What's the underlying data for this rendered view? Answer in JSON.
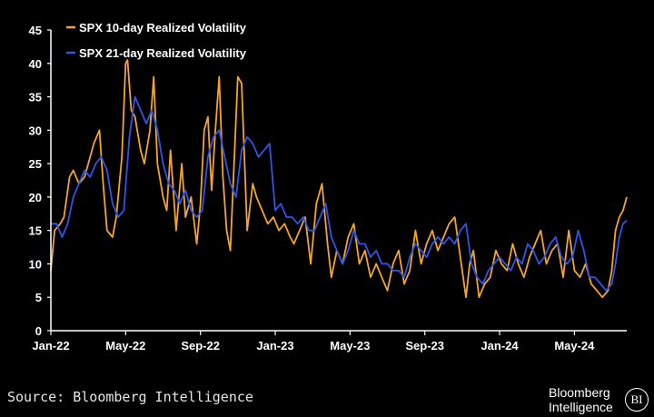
{
  "chart_data": {
    "type": "line",
    "title": "",
    "xlabel": "",
    "ylabel": "",
    "ylim": [
      0,
      45
    ],
    "yticks": [
      0,
      5,
      10,
      15,
      20,
      25,
      30,
      35,
      40,
      45
    ],
    "x_range": [
      0,
      30.8
    ],
    "x_unit": "months since Jan-22",
    "xtick_labels": [
      {
        "x": 0,
        "label": "Jan-22"
      },
      {
        "x": 4,
        "label": "May-22"
      },
      {
        "x": 8,
        "label": "Sep-22"
      },
      {
        "x": 12,
        "label": "Jan-23"
      },
      {
        "x": 16,
        "label": "May-23"
      },
      {
        "x": 20,
        "label": "Sep-23"
      },
      {
        "x": 24,
        "label": "Jan-24"
      },
      {
        "x": 28,
        "label": "May-24"
      }
    ],
    "series": [
      {
        "name": "SPX 10-day Realized Volatility",
        "color": "#f5a623",
        "x": [
          0,
          0.2,
          0.5,
          0.7,
          1.0,
          1.2,
          1.5,
          1.8,
          2.0,
          2.3,
          2.6,
          2.8,
          3.0,
          3.3,
          3.5,
          3.8,
          4.0,
          4.1,
          4.3,
          4.5,
          4.8,
          5.0,
          5.3,
          5.5,
          5.7,
          6.0,
          6.2,
          6.4,
          6.7,
          7.0,
          7.2,
          7.5,
          7.8,
          8.0,
          8.2,
          8.4,
          8.6,
          8.8,
          9.0,
          9.2,
          9.4,
          9.6,
          9.8,
          10.0,
          10.2,
          10.5,
          10.8,
          11.0,
          11.3,
          11.6,
          11.9,
          12.2,
          12.5,
          12.8,
          13.0,
          13.3,
          13.6,
          13.9,
          14.2,
          14.5,
          14.8,
          15.0,
          15.3,
          15.6,
          15.9,
          16.2,
          16.5,
          16.8,
          17.1,
          17.4,
          17.7,
          18.0,
          18.3,
          18.6,
          18.9,
          19.2,
          19.5,
          19.8,
          20.1,
          20.4,
          20.7,
          21.0,
          21.3,
          21.6,
          21.9,
          22.2,
          22.4,
          22.6,
          22.9,
          23.2,
          23.5,
          23.8,
          24.1,
          24.4,
          24.7,
          25.0,
          25.3,
          25.6,
          25.9,
          26.2,
          26.5,
          26.8,
          27.1,
          27.4,
          27.7,
          28.0,
          28.3,
          28.6,
          28.9,
          29.2,
          29.5,
          29.8,
          30.0,
          30.2,
          30.4,
          30.6,
          30.8
        ],
        "values": [
          9,
          15,
          16,
          17,
          23,
          24,
          22,
          23,
          25,
          28,
          30,
          22,
          15,
          14,
          17,
          26,
          40,
          40.5,
          33,
          32,
          27,
          25,
          30,
          38,
          25,
          20,
          18,
          27,
          15,
          25,
          17,
          20,
          13,
          19,
          30,
          32,
          21,
          30,
          38,
          23,
          15,
          12,
          25,
          38,
          37,
          15,
          22,
          20,
          18,
          16,
          17,
          15,
          16,
          14,
          13,
          15,
          17,
          10,
          19,
          22,
          13,
          8,
          12,
          10,
          14,
          16,
          10,
          12,
          8,
          10,
          8,
          6,
          10,
          12,
          7,
          9,
          15,
          10,
          13,
          15,
          12,
          14,
          16,
          17,
          11,
          5,
          10,
          12,
          5,
          7,
          8,
          12,
          10,
          9,
          13,
          10,
          8,
          11,
          13,
          15,
          10,
          12,
          13,
          8,
          15,
          9,
          8,
          10,
          7,
          6,
          5,
          6,
          9,
          15,
          17,
          18,
          20
        ]
      },
      {
        "name": "SPX 21-day Realized Volatility",
        "color": "#2f55e6",
        "x": [
          0,
          0.3,
          0.6,
          0.9,
          1.2,
          1.5,
          1.8,
          2.1,
          2.4,
          2.7,
          3.0,
          3.3,
          3.6,
          3.9,
          4.2,
          4.5,
          4.8,
          5.1,
          5.4,
          5.7,
          6.0,
          6.3,
          6.6,
          6.9,
          7.2,
          7.5,
          7.8,
          8.1,
          8.4,
          8.7,
          9.0,
          9.3,
          9.6,
          9.9,
          10.2,
          10.5,
          10.8,
          11.1,
          11.4,
          11.7,
          12.0,
          12.3,
          12.6,
          12.9,
          13.2,
          13.5,
          13.8,
          14.1,
          14.4,
          14.7,
          15.0,
          15.3,
          15.6,
          15.9,
          16.2,
          16.5,
          16.8,
          17.1,
          17.4,
          17.7,
          18.0,
          18.3,
          18.6,
          18.9,
          19.2,
          19.5,
          19.8,
          20.1,
          20.4,
          20.7,
          21.0,
          21.3,
          21.6,
          21.9,
          22.2,
          22.5,
          22.8,
          23.1,
          23.4,
          23.7,
          24.0,
          24.3,
          24.6,
          24.9,
          25.2,
          25.5,
          25.8,
          26.1,
          26.4,
          26.7,
          27.0,
          27.3,
          27.6,
          27.9,
          28.2,
          28.5,
          28.8,
          29.1,
          29.4,
          29.7,
          30.0,
          30.2,
          30.4,
          30.6,
          30.8
        ],
        "values": [
          16,
          16,
          14,
          16,
          20,
          22,
          24,
          23,
          25,
          26,
          24,
          19,
          17,
          18,
          29,
          35,
          33,
          31,
          33,
          30,
          25,
          22,
          21,
          19,
          21,
          18,
          17,
          18,
          26,
          29,
          30,
          26,
          22,
          20,
          27,
          29,
          28,
          26,
          27,
          28,
          18,
          19,
          17,
          17,
          16,
          17,
          15,
          15,
          17,
          19,
          14,
          12,
          10,
          12,
          15,
          13,
          13,
          11,
          12,
          10,
          10,
          9,
          9,
          8,
          11,
          13,
          12,
          11,
          13,
          14,
          13,
          14,
          13,
          15,
          16,
          10,
          8,
          7,
          9,
          10,
          11,
          10,
          9,
          11,
          10,
          13,
          12,
          10,
          11,
          13,
          14,
          11,
          10,
          11,
          15,
          12,
          8,
          8,
          7,
          6,
          7,
          10,
          14,
          16,
          16.5
        ]
      }
    ]
  },
  "source_text": "Source: Bloomberg Intelligence",
  "brand": {
    "line1": "Bloomberg",
    "line2": "Intelligence",
    "badge": "BI"
  }
}
